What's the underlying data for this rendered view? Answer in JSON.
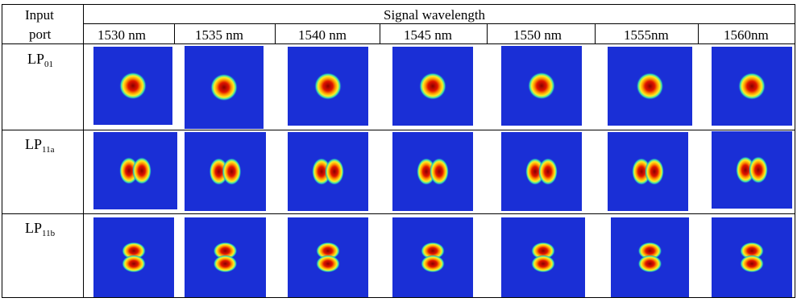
{
  "table": {
    "header_input_port": [
      "Input",
      "port"
    ],
    "header_signal": "Signal wavelength",
    "wavelengths": [
      "1530 nm",
      "1535 nm",
      "1540 nm",
      "1545 nm",
      "1550 nm",
      "1555nm",
      "1560nm"
    ],
    "rows": [
      {
        "label_main": "LP",
        "label_sub": "01",
        "mode": "LP01"
      },
      {
        "label_main": "LP",
        "label_sub": "11a",
        "mode": "LP11a"
      },
      {
        "label_main": "LP",
        "label_sub": "11b",
        "mode": "LP11b"
      }
    ]
  },
  "colors": {
    "background_field": "#1a2fd6",
    "mode_core": "#b80000",
    "mode_edge": "#ffe21a"
  }
}
